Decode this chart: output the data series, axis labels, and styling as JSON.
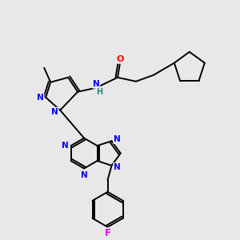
{
  "bg_color": "#e8e8e8",
  "atom_colors": {
    "N": "#0000ee",
    "O": "#ff0000",
    "F": "#ee00ee",
    "C": "#000000",
    "H": "#2a8a7a"
  },
  "bond_color": "#000000",
  "lw": 1.4,
  "fontsize": 8.5
}
